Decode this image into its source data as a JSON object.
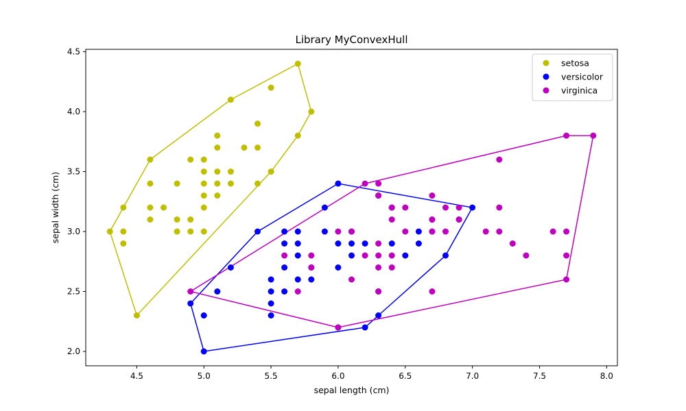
{
  "chart_data": {
    "type": "scatter",
    "title": "Library MyConvexHull",
    "xlabel": "sepal length (cm)",
    "ylabel": "sepal width (cm)",
    "xlim": [
      4.12,
      8.08
    ],
    "ylim": [
      1.88,
      4.52
    ],
    "xticks": [
      "4.5",
      "5.0",
      "5.5",
      "6.0",
      "6.5",
      "7.0",
      "7.5",
      "8.0"
    ],
    "yticks": [
      "2.0",
      "2.5",
      "3.0",
      "3.5",
      "4.0",
      "4.5"
    ],
    "legend_position": "top-right",
    "grid": false,
    "series": [
      {
        "name": "setosa",
        "color": "#bfbf00",
        "points": [
          [
            4.3,
            3.0
          ],
          [
            4.4,
            2.9
          ],
          [
            4.4,
            3.0
          ],
          [
            4.4,
            3.2
          ],
          [
            4.5,
            2.3
          ],
          [
            4.6,
            3.1
          ],
          [
            4.6,
            3.2
          ],
          [
            4.6,
            3.4
          ],
          [
            4.6,
            3.6
          ],
          [
            4.7,
            3.2
          ],
          [
            4.8,
            3.0
          ],
          [
            4.8,
            3.1
          ],
          [
            4.8,
            3.4
          ],
          [
            4.9,
            3.0
          ],
          [
            4.9,
            3.1
          ],
          [
            4.9,
            3.6
          ],
          [
            5.0,
            3.0
          ],
          [
            5.0,
            3.2
          ],
          [
            5.0,
            3.3
          ],
          [
            5.0,
            3.4
          ],
          [
            5.0,
            3.5
          ],
          [
            5.0,
            3.6
          ],
          [
            5.1,
            3.3
          ],
          [
            5.1,
            3.4
          ],
          [
            5.1,
            3.5
          ],
          [
            5.1,
            3.7
          ],
          [
            5.1,
            3.8
          ],
          [
            5.2,
            3.4
          ],
          [
            5.2,
            3.5
          ],
          [
            5.2,
            4.1
          ],
          [
            5.3,
            3.7
          ],
          [
            5.4,
            3.4
          ],
          [
            5.4,
            3.7
          ],
          [
            5.4,
            3.9
          ],
          [
            5.5,
            3.5
          ],
          [
            5.5,
            4.2
          ],
          [
            5.7,
            3.8
          ],
          [
            5.7,
            4.4
          ],
          [
            5.8,
            4.0
          ]
        ],
        "hull": [
          [
            4.5,
            2.3
          ],
          [
            5.5,
            3.5
          ],
          [
            5.7,
            3.8
          ],
          [
            5.8,
            4.0
          ],
          [
            5.7,
            4.4
          ],
          [
            5.2,
            4.1
          ],
          [
            4.6,
            3.6
          ],
          [
            4.4,
            3.2
          ],
          [
            4.3,
            3.0
          ],
          [
            4.5,
            2.3
          ]
        ]
      },
      {
        "name": "versicolor",
        "color": "#0000ff",
        "points": [
          [
            4.9,
            2.4
          ],
          [
            5.0,
            2.0
          ],
          [
            5.0,
            2.3
          ],
          [
            5.1,
            2.5
          ],
          [
            5.2,
            2.7
          ],
          [
            5.4,
            3.0
          ],
          [
            5.5,
            2.3
          ],
          [
            5.5,
            2.4
          ],
          [
            5.5,
            2.5
          ],
          [
            5.5,
            2.6
          ],
          [
            5.6,
            2.5
          ],
          [
            5.6,
            2.7
          ],
          [
            5.6,
            2.9
          ],
          [
            5.6,
            3.0
          ],
          [
            5.7,
            2.6
          ],
          [
            5.7,
            2.8
          ],
          [
            5.7,
            2.9
          ],
          [
            5.7,
            3.0
          ],
          [
            5.8,
            2.6
          ],
          [
            5.8,
            2.7
          ],
          [
            5.9,
            3.0
          ],
          [
            5.9,
            3.2
          ],
          [
            6.0,
            2.2
          ],
          [
            6.0,
            2.7
          ],
          [
            6.0,
            2.9
          ],
          [
            6.0,
            3.4
          ],
          [
            6.1,
            2.8
          ],
          [
            6.1,
            2.9
          ],
          [
            6.1,
            3.0
          ],
          [
            6.2,
            2.2
          ],
          [
            6.2,
            2.9
          ],
          [
            6.3,
            2.3
          ],
          [
            6.3,
            2.5
          ],
          [
            6.3,
            3.3
          ],
          [
            6.4,
            2.9
          ],
          [
            6.4,
            3.2
          ],
          [
            6.5,
            2.8
          ],
          [
            6.6,
            2.9
          ],
          [
            6.6,
            3.0
          ],
          [
            6.7,
            3.0
          ],
          [
            6.7,
            3.1
          ],
          [
            6.8,
            2.8
          ],
          [
            6.9,
            3.1
          ],
          [
            7.0,
            3.2
          ]
        ],
        "hull": [
          [
            5.0,
            2.0
          ],
          [
            6.2,
            2.2
          ],
          [
            6.3,
            2.3
          ],
          [
            6.8,
            2.8
          ],
          [
            7.0,
            3.2
          ],
          [
            6.0,
            3.4
          ],
          [
            5.4,
            3.0
          ],
          [
            4.9,
            2.4
          ],
          [
            5.0,
            2.0
          ]
        ]
      },
      {
        "name": "virginica",
        "color": "#bf00bf",
        "points": [
          [
            4.9,
            2.5
          ],
          [
            5.6,
            2.8
          ],
          [
            5.7,
            2.5
          ],
          [
            5.8,
            2.7
          ],
          [
            5.8,
            2.8
          ],
          [
            6.0,
            2.2
          ],
          [
            6.0,
            3.0
          ],
          [
            6.1,
            2.6
          ],
          [
            6.1,
            3.0
          ],
          [
            6.2,
            2.8
          ],
          [
            6.2,
            3.4
          ],
          [
            6.3,
            2.5
          ],
          [
            6.3,
            2.7
          ],
          [
            6.3,
            2.8
          ],
          [
            6.3,
            2.9
          ],
          [
            6.3,
            3.3
          ],
          [
            6.3,
            3.4
          ],
          [
            6.4,
            2.7
          ],
          [
            6.4,
            2.8
          ],
          [
            6.4,
            3.1
          ],
          [
            6.4,
            3.2
          ],
          [
            6.5,
            3.0
          ],
          [
            6.5,
            3.2
          ],
          [
            6.7,
            2.5
          ],
          [
            6.7,
            3.0
          ],
          [
            6.7,
            3.1
          ],
          [
            6.7,
            3.3
          ],
          [
            6.8,
            3.0
          ],
          [
            6.8,
            3.2
          ],
          [
            6.9,
            3.1
          ],
          [
            6.9,
            3.2
          ],
          [
            7.1,
            3.0
          ],
          [
            7.2,
            3.0
          ],
          [
            7.2,
            3.2
          ],
          [
            7.2,
            3.6
          ],
          [
            7.3,
            2.9
          ],
          [
            7.4,
            2.8
          ],
          [
            7.6,
            3.0
          ],
          [
            7.7,
            2.6
          ],
          [
            7.7,
            2.8
          ],
          [
            7.7,
            3.0
          ],
          [
            7.7,
            3.8
          ],
          [
            7.9,
            3.8
          ]
        ],
        "hull": [
          [
            6.0,
            2.2
          ],
          [
            7.7,
            2.6
          ],
          [
            7.9,
            3.8
          ],
          [
            7.7,
            3.8
          ],
          [
            6.2,
            3.4
          ],
          [
            4.9,
            2.5
          ],
          [
            6.0,
            2.2
          ]
        ]
      }
    ]
  }
}
